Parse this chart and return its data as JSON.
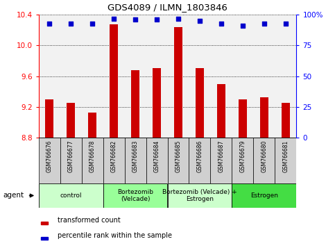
{
  "title": "GDS4089 / ILMN_1803846",
  "samples": [
    "GSM766676",
    "GSM766677",
    "GSM766678",
    "GSM766682",
    "GSM766683",
    "GSM766684",
    "GSM766685",
    "GSM766686",
    "GSM766687",
    "GSM766679",
    "GSM766680",
    "GSM766681"
  ],
  "bar_values": [
    9.3,
    9.25,
    9.13,
    10.28,
    9.68,
    9.71,
    10.24,
    9.71,
    9.5,
    9.3,
    9.33,
    9.25
  ],
  "percentile_values": [
    93,
    93,
    93,
    97,
    96,
    96,
    97,
    95,
    93,
    91,
    93,
    93
  ],
  "bar_color": "#cc0000",
  "dot_color": "#0000cc",
  "ylim_left": [
    8.8,
    10.4
  ],
  "ylim_right": [
    0,
    100
  ],
  "yticks_left": [
    8.8,
    9.2,
    9.6,
    10.0,
    10.4
  ],
  "yticks_right": [
    0,
    25,
    50,
    75,
    100
  ],
  "groups": [
    {
      "label": "control",
      "start": 0,
      "end": 3,
      "color": "#ccffcc"
    },
    {
      "label": "Bortezomib\n(Velcade)",
      "start": 3,
      "end": 6,
      "color": "#99ff99"
    },
    {
      "label": "Bortezomib (Velcade) +\nEstrogen",
      "start": 6,
      "end": 9,
      "color": "#ccffcc"
    },
    {
      "label": "Estrogen",
      "start": 9,
      "end": 12,
      "color": "#44dd44"
    }
  ],
  "agent_label": "agent",
  "legend_items": [
    {
      "color": "#cc0000",
      "label": "transformed count"
    },
    {
      "color": "#0000cc",
      "label": "percentile rank within the sample"
    }
  ],
  "plot_bg_color": "#f2f2f2",
  "sample_bg_color": "#d0d0d0",
  "bar_width": 0.4
}
